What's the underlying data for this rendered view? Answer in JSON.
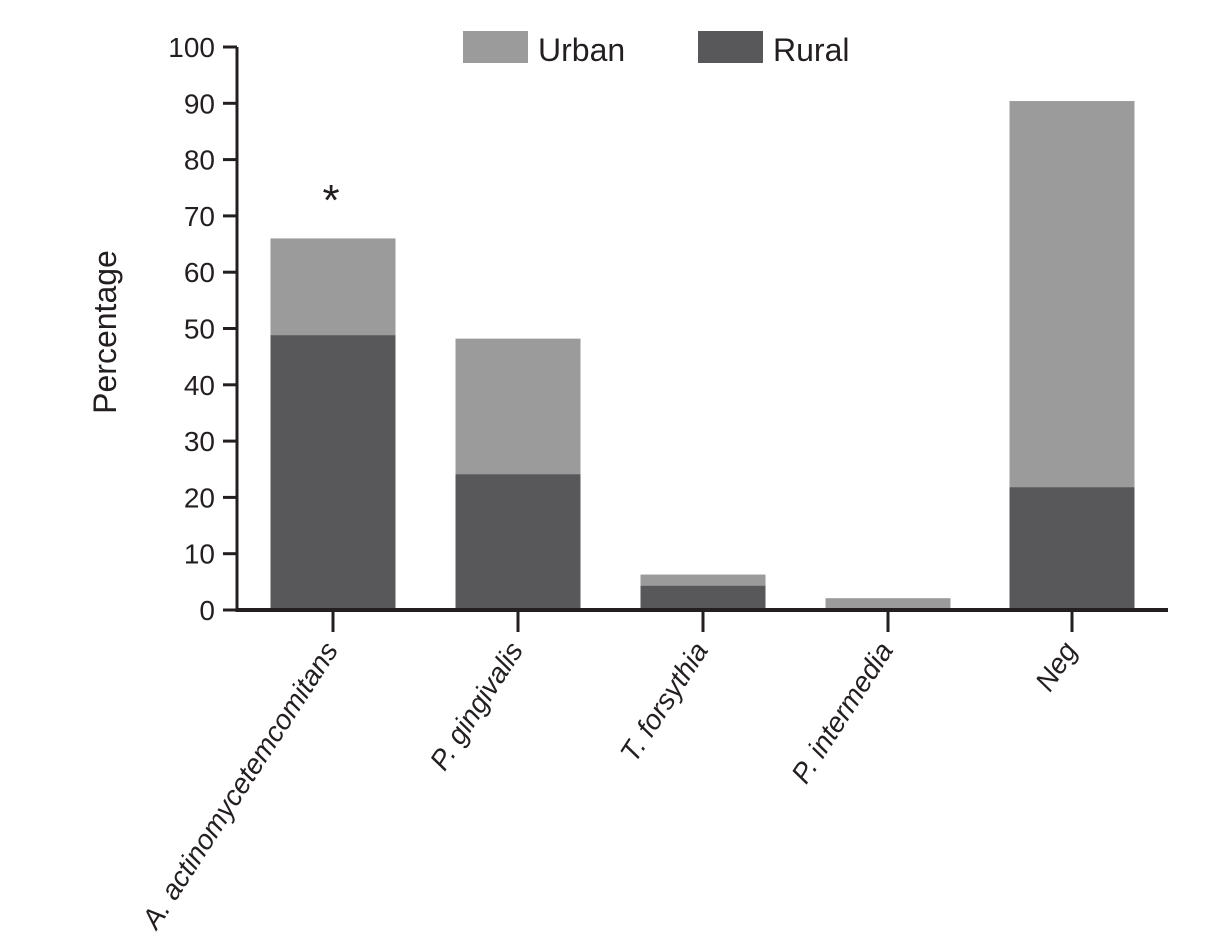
{
  "chart_data": {
    "type": "bar",
    "overlay": true,
    "categories": [
      "A. actinomycetemcomitans",
      "P. gingivalis",
      "T. forsythia",
      "P. intermedia",
      "Neg"
    ],
    "series": [
      {
        "name": "Urban",
        "color": "#9b9b9c",
        "values": [
          66.0,
          48.2,
          6.3,
          2.1,
          90.4
        ]
      },
      {
        "name": "Rural",
        "color": "#58585a",
        "values": [
          48.8,
          24.1,
          4.3,
          0,
          21.8
        ]
      }
    ],
    "annotations": [
      {
        "category": "A. actinomycetemcomitans",
        "text": "*"
      }
    ],
    "xlabel": "",
    "ylabel": "Percentage",
    "ylim": [
      0,
      100
    ],
    "yticks": [
      0,
      10,
      20,
      30,
      40,
      50,
      60,
      70,
      80,
      90,
      100
    ],
    "grid": false,
    "legend": "top-center"
  }
}
